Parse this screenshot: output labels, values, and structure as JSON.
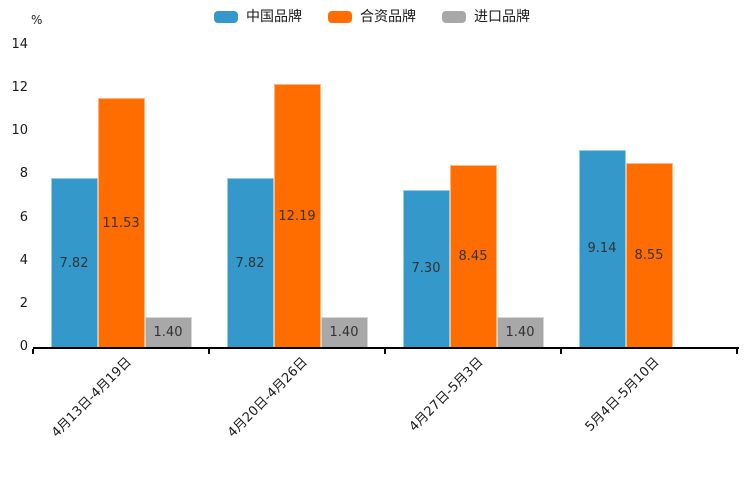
{
  "chart_data": {
    "type": "bar",
    "title": "",
    "unit_label": "%",
    "categories": [
      "4月13日-4月19日",
      "4月20日-4月26日",
      "4月27日-5月3日",
      "5月4日-5月10日"
    ],
    "series": [
      {
        "name": "中国品牌",
        "color": "#3498cb",
        "values": [
          7.82,
          7.82,
          7.3,
          9.14
        ]
      },
      {
        "name": "合资品牌",
        "color": "#ff6c00",
        "values": [
          11.53,
          12.19,
          8.45,
          8.55
        ]
      },
      {
        "name": "进口品牌",
        "color": "#a8a8a8",
        "values": [
          1.4,
          1.4,
          1.4,
          null
        ]
      }
    ],
    "value_label_format": "2dp",
    "ylim": [
      0,
      14
    ],
    "yticks": [
      0,
      2,
      4,
      6,
      8,
      10,
      12,
      14
    ],
    "ylabel": "%",
    "xlabel": "",
    "grid": false,
    "legend_position": "top"
  }
}
